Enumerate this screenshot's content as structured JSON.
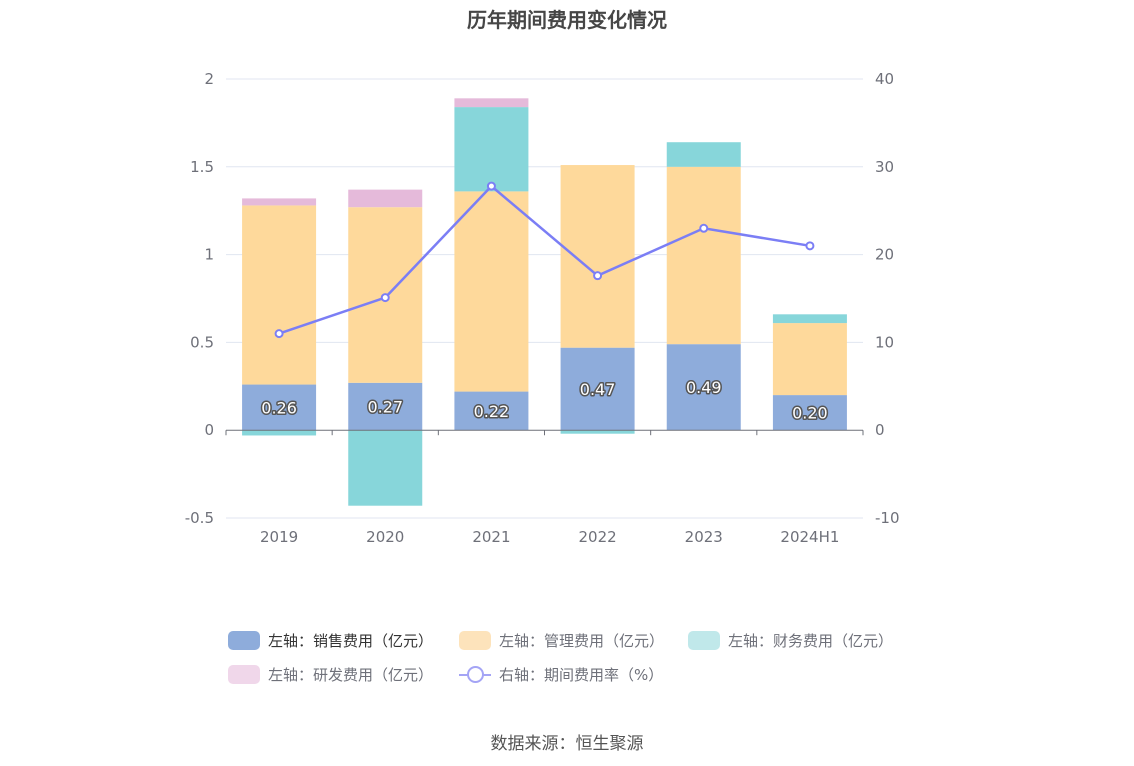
{
  "chart_data": {
    "type": "bar",
    "title": "历年期间费用变化情况",
    "categories": [
      "2019",
      "2020",
      "2021",
      "2022",
      "2023",
      "2024H1"
    ],
    "y_left": {
      "ylim": [
        -0.5,
        2
      ],
      "ticks": [
        "-0.5",
        "0",
        "0.5",
        "1",
        "1.5",
        "2"
      ]
    },
    "y_right": {
      "ylim": [
        -10,
        40
      ],
      "ticks": [
        "-10",
        "0",
        "10",
        "20",
        "30",
        "40"
      ]
    },
    "grid": true,
    "legend_position": "bottom",
    "series": [
      {
        "name": "左轴：销售费用（亿元）",
        "kind": "bar",
        "axis": "left",
        "color": "#8eacdb",
        "values": [
          0.26,
          0.27,
          0.22,
          0.47,
          0.49,
          0.2
        ],
        "labels": [
          "0.26",
          "0.27",
          "0.22",
          "0.47",
          "0.49",
          "0.20"
        ]
      },
      {
        "name": "左轴：管理费用（亿元）",
        "kind": "bar",
        "axis": "left",
        "color": "#fed99b",
        "values": [
          1.02,
          1.0,
          1.14,
          1.04,
          1.01,
          0.41
        ]
      },
      {
        "name": "左轴：财务费用（亿元）",
        "kind": "bar",
        "axis": "left",
        "color": "#87d6da",
        "values": [
          -0.03,
          -0.43,
          0.48,
          -0.02,
          0.14,
          0.05
        ]
      },
      {
        "name": "左轴：研发费用（亿元）",
        "kind": "bar",
        "axis": "left",
        "color": "#e5bada",
        "values": [
          0.04,
          0.1,
          0.05,
          0.0,
          0.0,
          0.0
        ]
      },
      {
        "name": "右轴：期间费用率（%）",
        "kind": "line",
        "axis": "right",
        "color": "#7b7ef5",
        "values": [
          11.0,
          15.1,
          27.8,
          17.6,
          23.0,
          21.0
        ]
      }
    ],
    "legend_colors": [
      "#8eacdb",
      "#fde3bb",
      "#c0e8ea",
      "#f0d7ea"
    ]
  },
  "source": "数据来源：恒生聚源"
}
